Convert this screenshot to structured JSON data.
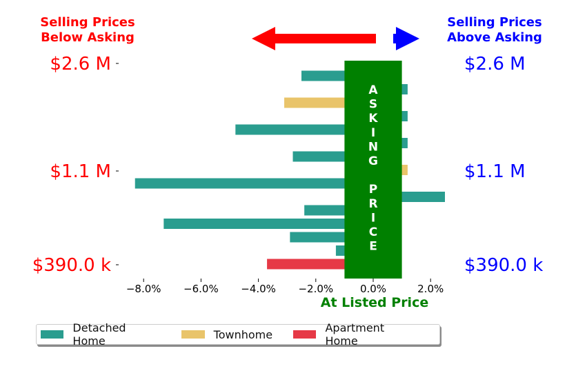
{
  "header": {
    "left_label_line1": "Selling Prices",
    "left_label_line2": "Below Asking",
    "right_label_line1": "Selling Prices",
    "right_label_line2": "Above Asking"
  },
  "colors": {
    "below": "#ff0000",
    "above": "#0000ff",
    "asking": "#008000",
    "detached": "#2a9d8f",
    "townhome": "#e9c46a",
    "apartment": "#e63946"
  },
  "chart_data": {
    "type": "bar",
    "orientation": "horizontal",
    "xlim": [
      -9.0,
      2.5
    ],
    "xticks": [
      -8,
      -6,
      -4,
      -2,
      0,
      2
    ],
    "xtick_labels": [
      "−8.0%",
      "−6.0%",
      "−4.0%",
      "−2.0%",
      "0.0%",
      "2.0%"
    ],
    "xlabel": "At Listed Price",
    "ylabels_left": [
      "$2.6 M",
      "$1.1 M",
      "$390.0 k"
    ],
    "ylabels_right": [
      "$2.6 M",
      "$1.1 M",
      "$390.0 k"
    ],
    "asking_band_label": [
      "A",
      "S",
      "K",
      "I",
      "N",
      "G",
      "",
      "P",
      "R",
      "I",
      "C",
      "E"
    ],
    "asking_band": [
      -1.0,
      1.0
    ],
    "bars": [
      {
        "category": "Detached Home",
        "value": -2.5
      },
      {
        "category": "Detached Home",
        "value": 1.2
      },
      {
        "category": "Townhome",
        "value": -3.1
      },
      {
        "category": "Detached Home",
        "value": 1.2
      },
      {
        "category": "Detached Home",
        "value": -4.8
      },
      {
        "category": "Detached Home",
        "value": 1.2
      },
      {
        "category": "Detached Home",
        "value": -2.8
      },
      {
        "category": "Townhome",
        "value": 1.2
      },
      {
        "category": "Detached Home",
        "value": -8.3
      },
      {
        "category": "Detached Home",
        "value": 2.5
      },
      {
        "category": "Detached Home",
        "value": -2.4
      },
      {
        "category": "Detached Home",
        "value": -7.3
      },
      {
        "category": "Detached Home",
        "value": -2.9
      },
      {
        "category": "Detached Home",
        "value": -1.3
      },
      {
        "category": "Apartment Home",
        "value": -3.7
      }
    ],
    "legend": [
      {
        "name": "Detached Home",
        "color": "#2a9d8f"
      },
      {
        "name": "Townhome",
        "color": "#e9c46a"
      },
      {
        "name": "Apartment Home",
        "color": "#e63946"
      }
    ],
    "legend_position": "bottom-left"
  }
}
